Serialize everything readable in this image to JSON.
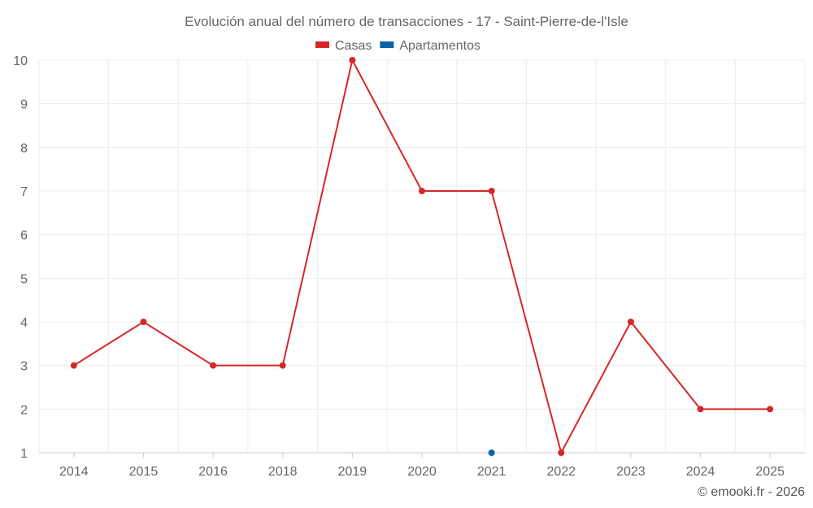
{
  "chart_data": {
    "type": "line",
    "title": "Evolución anual del número de transacciones - 17 - Saint-Pierre-de-l'Isle",
    "categories": [
      "2014",
      "2015",
      "2016",
      "2018",
      "2019",
      "2020",
      "2021",
      "2022",
      "2023",
      "2024",
      "2025"
    ],
    "series": [
      {
        "name": "Casas",
        "color": "#d62728",
        "values": [
          3,
          4,
          3,
          3,
          10,
          7,
          7,
          1,
          4,
          2,
          2
        ]
      },
      {
        "name": "Apartamentos",
        "color": "#0b62a4",
        "values": [
          null,
          null,
          null,
          null,
          null,
          null,
          1,
          null,
          null,
          null,
          null
        ]
      }
    ],
    "ylim": [
      1,
      10
    ],
    "yticks": [
      "1",
      "2",
      "3",
      "4",
      "5",
      "6",
      "7",
      "8",
      "9",
      "10"
    ],
    "grid": true,
    "legend": "top-center",
    "xlabel": "",
    "ylabel": ""
  },
  "credit": "© emooki.fr - 2026"
}
